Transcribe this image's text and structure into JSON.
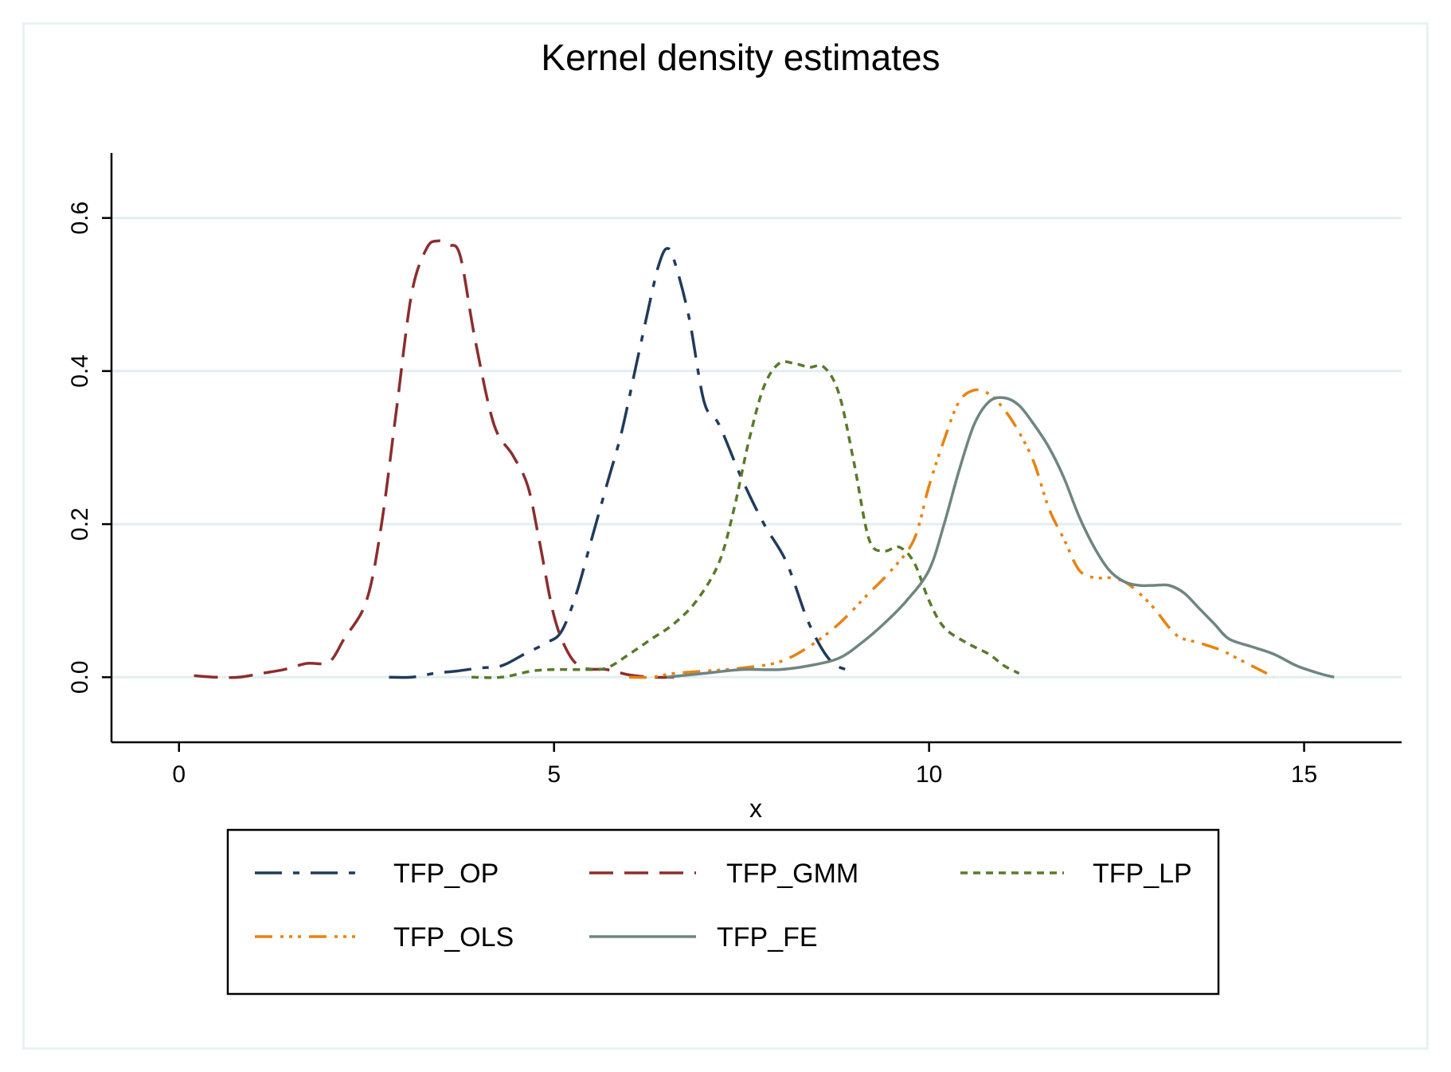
{
  "chart_data": {
    "type": "line",
    "title": "Kernel density estimates",
    "xlabel": "x",
    "ylabel": "",
    "xlim": [
      -0.9,
      16.3
    ],
    "ylim": [
      -0.085,
      0.685
    ],
    "xticks": [
      0,
      5,
      10,
      15
    ],
    "xtick_labels": [
      "0",
      "5",
      "10",
      "15"
    ],
    "yticks": [
      0,
      0.2,
      0.4,
      0.6
    ],
    "ytick_labels": [
      "0.0",
      "0.2",
      "0.4",
      "0.6"
    ],
    "grid": true,
    "legend_position": "bottom",
    "colors": {
      "grid": "#e3eef0",
      "frame": "#eaf2f3",
      "axis": "#000000"
    },
    "series": [
      {
        "name": "TFP_OP",
        "color": "#1f3b5c",
        "dash": "34 14 8 14",
        "x": [
          2.8,
          3.1,
          3.4,
          3.7,
          4.0,
          4.3,
          4.6,
          4.9,
          5.1,
          5.3,
          5.5,
          5.7,
          5.9,
          6.1,
          6.3,
          6.4,
          6.5,
          6.6,
          6.8,
          7.0,
          7.2,
          7.5,
          7.8,
          8.1,
          8.4,
          8.7,
          9.0
        ],
        "y": [
          0.0,
          0.0,
          0.005,
          0.008,
          0.012,
          0.015,
          0.03,
          0.045,
          0.06,
          0.11,
          0.18,
          0.25,
          0.32,
          0.41,
          0.5,
          0.54,
          0.56,
          0.545,
          0.47,
          0.36,
          0.33,
          0.26,
          0.2,
          0.15,
          0.07,
          0.02,
          0.008
        ]
      },
      {
        "name": "TFP_GMM",
        "color": "#8c2d2d",
        "dash": "30 14",
        "x": [
          0.2,
          0.5,
          0.8,
          1.1,
          1.4,
          1.7,
          2.0,
          2.2,
          2.5,
          2.7,
          2.9,
          3.1,
          3.3,
          3.45,
          3.6,
          3.75,
          3.95,
          4.2,
          4.45,
          4.65,
          4.8,
          5.0,
          5.2,
          5.4,
          5.7,
          6.0,
          6.3,
          6.6
        ],
        "y": [
          0.002,
          0.0,
          0.0,
          0.005,
          0.01,
          0.018,
          0.02,
          0.05,
          0.1,
          0.2,
          0.35,
          0.5,
          0.56,
          0.57,
          0.565,
          0.55,
          0.44,
          0.33,
          0.29,
          0.25,
          0.18,
          0.08,
          0.03,
          0.012,
          0.01,
          0.003,
          0.0,
          0.0
        ]
      },
      {
        "name": "TFP_LP",
        "color": "#5a7a2b",
        "dash": "9 7",
        "x": [
          3.9,
          4.3,
          4.7,
          5.0,
          5.4,
          5.7,
          6.0,
          6.3,
          6.6,
          6.9,
          7.2,
          7.4,
          7.6,
          7.8,
          8.0,
          8.2,
          8.4,
          8.6,
          8.8,
          9.0,
          9.2,
          9.4,
          9.6,
          9.8,
          10.0,
          10.2,
          10.5,
          10.8,
          11.0,
          11.2
        ],
        "y": [
          0.0,
          0.0,
          0.008,
          0.01,
          0.01,
          0.012,
          0.03,
          0.05,
          0.07,
          0.1,
          0.15,
          0.22,
          0.31,
          0.38,
          0.41,
          0.41,
          0.405,
          0.405,
          0.37,
          0.28,
          0.18,
          0.165,
          0.17,
          0.15,
          0.1,
          0.065,
          0.045,
          0.03,
          0.015,
          0.005
        ]
      },
      {
        "name": "TFP_OLS",
        "color": "#e8820f",
        "dash": "22 10 4 7 4 7 4 10",
        "x": [
          6.0,
          6.3,
          6.6,
          7.0,
          7.5,
          8.0,
          8.4,
          8.8,
          9.2,
          9.5,
          9.8,
          10.0,
          10.2,
          10.4,
          10.6,
          10.8,
          11.0,
          11.2,
          11.4,
          11.6,
          11.8,
          12.0,
          12.2,
          12.4,
          12.6,
          12.8,
          13.0,
          13.3,
          13.6,
          13.9,
          14.2,
          14.6
        ],
        "y": [
          0.0,
          0.0,
          0.005,
          0.008,
          0.012,
          0.02,
          0.04,
          0.07,
          0.11,
          0.14,
          0.18,
          0.25,
          0.31,
          0.36,
          0.375,
          0.37,
          0.35,
          0.32,
          0.28,
          0.22,
          0.18,
          0.14,
          0.13,
          0.13,
          0.125,
          0.11,
          0.09,
          0.055,
          0.045,
          0.035,
          0.02,
          0.0
        ]
      },
      {
        "name": "TFP_FE",
        "color": "#6f8580",
        "dash": "",
        "x": [
          6.5,
          7.0,
          7.5,
          8.0,
          8.4,
          8.8,
          9.1,
          9.4,
          9.7,
          10.0,
          10.2,
          10.4,
          10.6,
          10.8,
          11.0,
          11.2,
          11.4,
          11.6,
          11.8,
          12.0,
          12.2,
          12.4,
          12.6,
          12.8,
          13.0,
          13.2,
          13.4,
          13.6,
          13.8,
          14.0,
          14.3,
          14.6,
          14.9,
          15.2,
          15.4
        ],
        "y": [
          0.0,
          0.005,
          0.01,
          0.01,
          0.015,
          0.025,
          0.045,
          0.07,
          0.1,
          0.14,
          0.2,
          0.27,
          0.33,
          0.36,
          0.365,
          0.355,
          0.33,
          0.3,
          0.26,
          0.21,
          0.17,
          0.14,
          0.125,
          0.12,
          0.12,
          0.12,
          0.11,
          0.09,
          0.07,
          0.05,
          0.04,
          0.03,
          0.015,
          0.005,
          0.0
        ]
      }
    ]
  }
}
